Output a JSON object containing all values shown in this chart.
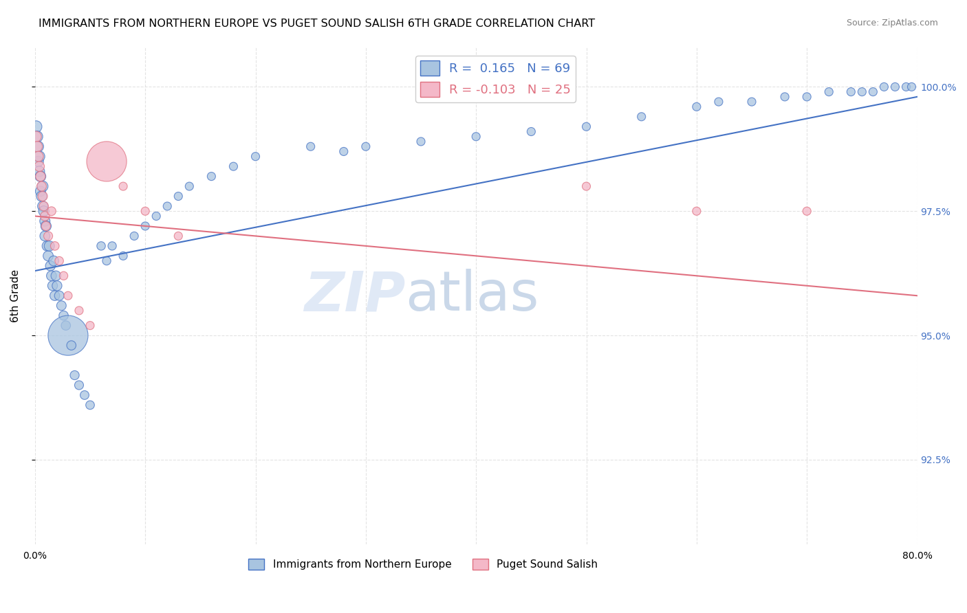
{
  "title": "IMMIGRANTS FROM NORTHERN EUROPE VS PUGET SOUND SALISH 6TH GRADE CORRELATION CHART",
  "source": "Source: ZipAtlas.com",
  "ylabel": "6th Grade",
  "xlim": [
    0.0,
    0.8
  ],
  "ylim": [
    0.908,
    1.008
  ],
  "xticks": [
    0.0,
    0.1,
    0.2,
    0.3,
    0.4,
    0.5,
    0.6,
    0.7,
    0.8
  ],
  "xticklabels": [
    "0.0%",
    "",
    "",
    "",
    "",
    "",
    "",
    "",
    "80.0%"
  ],
  "yticks": [
    0.925,
    0.95,
    0.975,
    1.0
  ],
  "yticklabels": [
    "92.5%",
    "95.0%",
    "97.5%",
    "100.0%"
  ],
  "legend_labels": [
    "Immigrants from Northern Europe",
    "Puget Sound Salish"
  ],
  "blue_color": "#a8c4e0",
  "pink_color": "#f4b8c8",
  "blue_edge_color": "#4472c4",
  "pink_edge_color": "#e07080",
  "blue_line_color": "#4472c4",
  "pink_line_color": "#e07080",
  "R_blue": 0.165,
  "N_blue": 69,
  "R_pink": -0.103,
  "N_pink": 25,
  "blue_x": [
    0.001,
    0.002,
    0.003,
    0.003,
    0.004,
    0.004,
    0.005,
    0.005,
    0.006,
    0.007,
    0.007,
    0.008,
    0.009,
    0.009,
    0.01,
    0.011,
    0.012,
    0.013,
    0.014,
    0.015,
    0.016,
    0.017,
    0.018,
    0.019,
    0.02,
    0.022,
    0.024,
    0.026,
    0.028,
    0.03,
    0.033,
    0.036,
    0.04,
    0.045,
    0.05,
    0.06,
    0.065,
    0.07,
    0.08,
    0.09,
    0.1,
    0.11,
    0.12,
    0.13,
    0.14,
    0.16,
    0.18,
    0.2,
    0.25,
    0.28,
    0.3,
    0.35,
    0.4,
    0.45,
    0.5,
    0.55,
    0.6,
    0.62,
    0.65,
    0.68,
    0.7,
    0.72,
    0.74,
    0.75,
    0.76,
    0.77,
    0.78,
    0.79,
    0.795
  ],
  "blue_y": [
    0.992,
    0.99,
    0.988,
    0.985,
    0.986,
    0.983,
    0.982,
    0.979,
    0.978,
    0.98,
    0.976,
    0.975,
    0.973,
    0.97,
    0.972,
    0.968,
    0.966,
    0.968,
    0.964,
    0.962,
    0.96,
    0.965,
    0.958,
    0.962,
    0.96,
    0.958,
    0.956,
    0.954,
    0.952,
    0.95,
    0.948,
    0.942,
    0.94,
    0.938,
    0.936,
    0.968,
    0.965,
    0.968,
    0.966,
    0.97,
    0.972,
    0.974,
    0.976,
    0.978,
    0.98,
    0.982,
    0.984,
    0.986,
    0.988,
    0.987,
    0.988,
    0.989,
    0.99,
    0.991,
    0.992,
    0.994,
    0.996,
    0.997,
    0.997,
    0.998,
    0.998,
    0.999,
    0.999,
    0.999,
    0.999,
    1.0,
    1.0,
    1.0,
    1.0
  ],
  "blue_sizes": [
    60,
    55,
    50,
    48,
    52,
    48,
    50,
    46,
    48,
    50,
    46,
    48,
    46,
    44,
    48,
    44,
    45,
    46,
    43,
    44,
    42,
    44,
    42,
    43,
    42,
    40,
    40,
    38,
    38,
    700,
    38,
    36,
    35,
    34,
    33,
    32,
    31,
    31,
    30,
    30,
    30,
    30,
    30,
    30,
    30,
    30,
    30,
    30,
    30,
    30,
    30,
    30,
    30,
    30,
    30,
    30,
    30,
    30,
    30,
    30,
    30,
    30,
    30,
    30,
    30,
    30,
    30,
    30,
    30
  ],
  "pink_x": [
    0.001,
    0.002,
    0.003,
    0.004,
    0.005,
    0.006,
    0.007,
    0.008,
    0.009,
    0.01,
    0.012,
    0.015,
    0.018,
    0.022,
    0.026,
    0.03,
    0.04,
    0.05,
    0.065,
    0.08,
    0.1,
    0.13,
    0.5,
    0.6,
    0.7
  ],
  "pink_y": [
    0.99,
    0.988,
    0.986,
    0.984,
    0.982,
    0.98,
    0.978,
    0.976,
    0.974,
    0.972,
    0.97,
    0.975,
    0.968,
    0.965,
    0.962,
    0.958,
    0.955,
    0.952,
    0.985,
    0.98,
    0.975,
    0.97,
    0.98,
    0.975,
    0.975
  ],
  "pink_sizes": [
    50,
    48,
    46,
    44,
    42,
    40,
    40,
    38,
    38,
    36,
    35,
    34,
    33,
    32,
    31,
    30,
    30,
    30,
    700,
    30,
    30,
    30,
    30,
    30,
    30
  ],
  "blue_trend_x": [
    0.0,
    0.8
  ],
  "blue_trend_y": [
    0.963,
    0.998
  ],
  "pink_trend_x": [
    0.0,
    0.8
  ],
  "pink_trend_y": [
    0.974,
    0.958
  ],
  "watermark_zip": "ZIP",
  "watermark_atlas": "atlas",
  "background_color": "#ffffff",
  "grid_color": "#dddddd"
}
